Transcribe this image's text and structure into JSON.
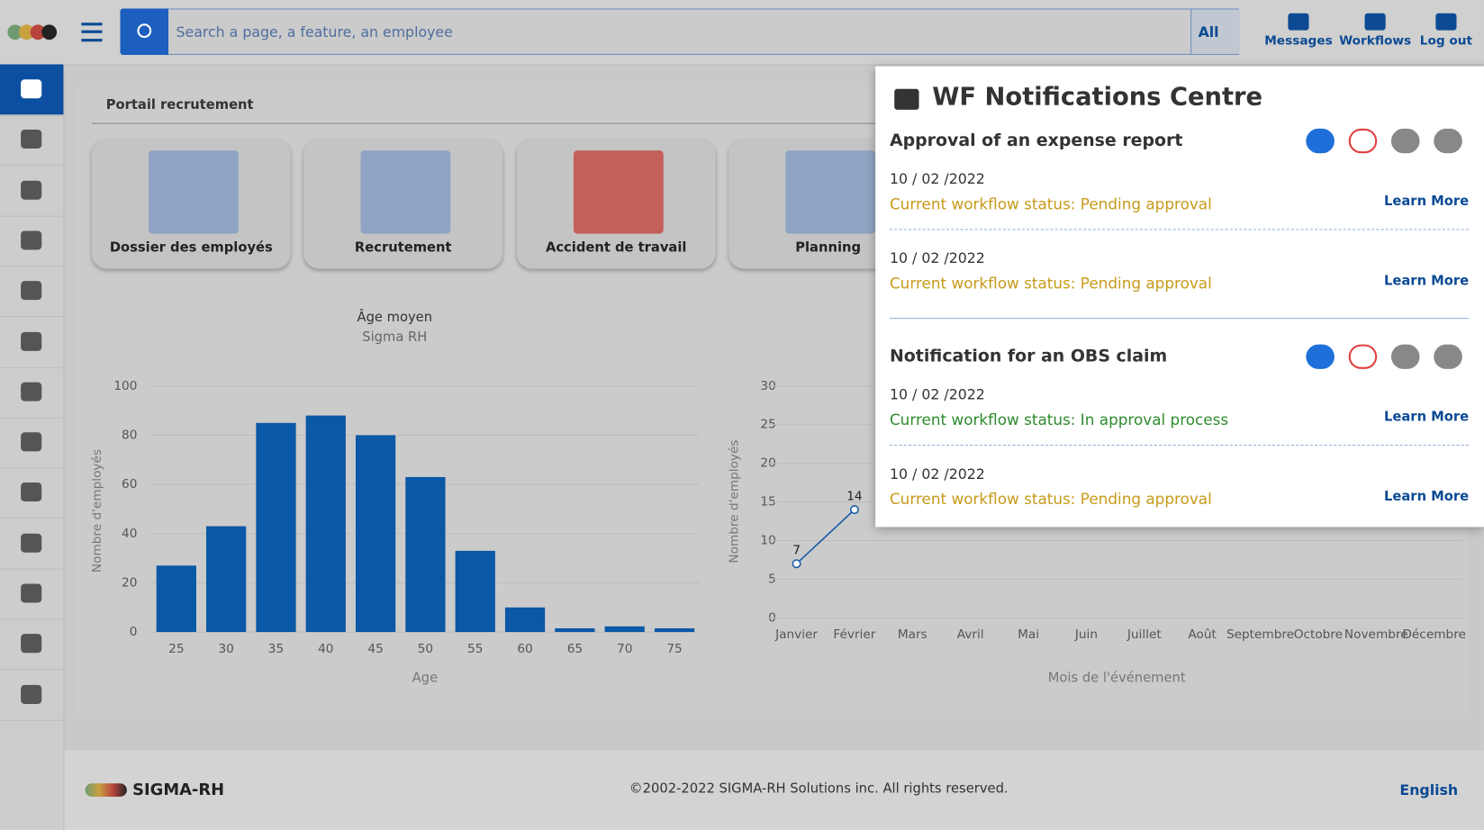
{
  "header": {
    "search_placeholder": "Search a page, a feature, an employee",
    "scope": "All",
    "nav": [
      "Messages",
      "Workflows",
      "Log out"
    ]
  },
  "portal": {
    "title": "Portail recrutement",
    "tiles": [
      "Dossier des employés",
      "Recrutement",
      "Accident de travail",
      "Planning"
    ]
  },
  "charts": [
    {
      "type": "bar",
      "title": "Âge moyen",
      "subtitle": "Sigma RH",
      "x_label": "Age",
      "y_label": "Nombre d'employés",
      "categories": [
        "25",
        "30",
        "35",
        "40",
        "45",
        "50",
        "55",
        "60",
        "65",
        "70",
        "75"
      ],
      "values": [
        27,
        43,
        85,
        88,
        80,
        63,
        33,
        10,
        1.5,
        2.3,
        1.5
      ],
      "color": "#0a58a6",
      "ylim": [
        0,
        100
      ],
      "yticks": [
        0,
        20,
        40,
        60,
        80,
        100
      ],
      "grid": true
    },
    {
      "type": "line",
      "x_label": "Mois de l'événement",
      "y_label": "Nombre d'employés",
      "categories": [
        "Janvier",
        "Février",
        "Mars",
        "Avril",
        "Mai",
        "Juin",
        "Juillet",
        "Août",
        "Septembre",
        "Octobre",
        "Novembre",
        "Décembre"
      ],
      "values": [
        7,
        14,
        null,
        null,
        null,
        null,
        null,
        null,
        null,
        null,
        null,
        null
      ],
      "color": "#1a5aa8",
      "ylim": [
        0,
        30
      ],
      "yticks": [
        0,
        5,
        10,
        15,
        20,
        25,
        30
      ],
      "grid": true
    }
  ],
  "panel": {
    "title": "WF Notifications Centre",
    "groups": [
      {
        "title": "Approval of an expense report",
        "items": [
          {
            "date": "10 / 02 /2022",
            "status": "Current workflow status: Pending approval",
            "link": "Learn More"
          },
          {
            "date": "10 / 02 /2022",
            "status": "Current workflow status: Pending approval",
            "link": "Learn More"
          }
        ]
      },
      {
        "title": "Notification for an OBS claim",
        "items": [
          {
            "date": "10 / 02 /2022",
            "status": "Current workflow status: In approval process",
            "link": "Learn More"
          },
          {
            "date": "10 / 02 /2022",
            "status": "Current workflow status: Pending approval",
            "link": "Learn More"
          }
        ]
      }
    ]
  },
  "footer": {
    "brand": "SIGMA-RH",
    "copyright": "©2002-2022 SIGMA-RH Solutions inc. All rights reserved.",
    "language": "English"
  }
}
